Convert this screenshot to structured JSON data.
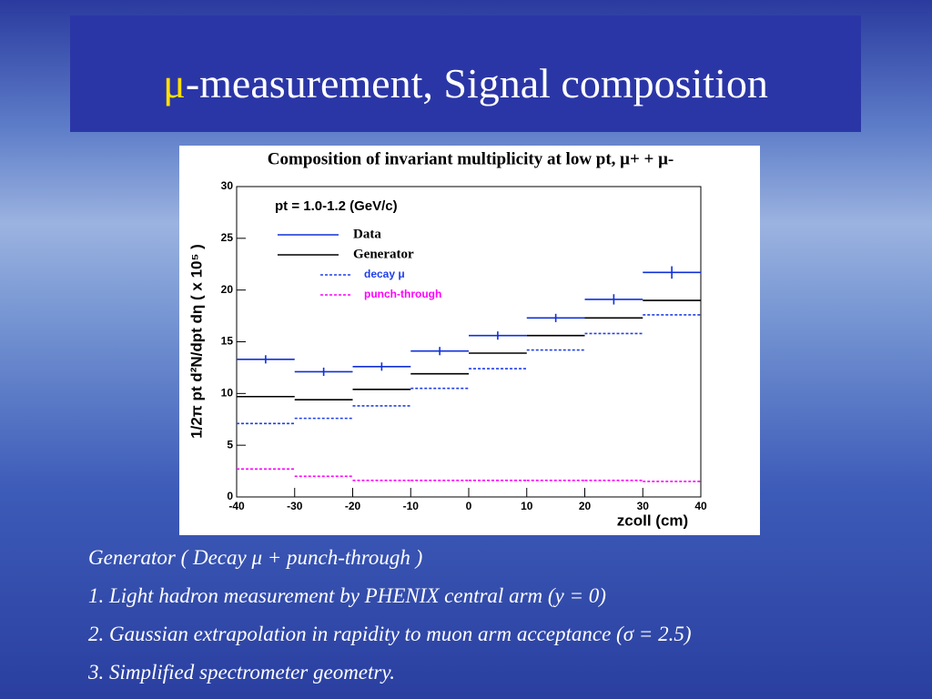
{
  "slide": {
    "title_symbol": "μ",
    "title": "-measurement, Signal composition",
    "notes": [
      "Generator  ( Decay μ + punch-through )",
      "1. Light hadron measurement  by PHENIX central arm (y = 0)",
      "2. Gaussian  extrapolation in rapidity to muon arm acceptance (σ = 2.5)",
      "3. Simplified spectrometer geometry."
    ]
  },
  "chart_data": {
    "type": "histogram",
    "title": "Composition of invariant multiplicity at low pt, μ+ + μ-",
    "annotation": "pt = 1.0-1.2 (GeV/c)",
    "x_label": "zcoll (cm)",
    "y_label": "1/2π pt d²N/dpt dη ( x 10⁵ )",
    "bins": [
      -40,
      -30,
      -20,
      -10,
      0,
      10,
      20,
      30,
      40
    ],
    "xlim": [
      -40,
      40
    ],
    "xticks": [
      -40,
      -30,
      -20,
      -10,
      0,
      10,
      20,
      30,
      40
    ],
    "ylim": [
      0,
      30
    ],
    "yticks": [
      0,
      5,
      10,
      15,
      20,
      25,
      30
    ],
    "series": [
      {
        "name": "Data",
        "color": "#1030d8",
        "style": "solid",
        "values": [
          13.3,
          12.1,
          12.6,
          14.1,
          15.6,
          17.3,
          19.1,
          21.7
        ],
        "errors": [
          0.4,
          0.4,
          0.4,
          0.4,
          0.4,
          0.4,
          0.5,
          0.6
        ]
      },
      {
        "name": "Generator",
        "color": "#000000",
        "style": "solid",
        "values": [
          9.7,
          9.4,
          10.4,
          11.9,
          13.9,
          15.6,
          17.3,
          19.0
        ]
      },
      {
        "name": "decay μ",
        "color": "#2040e8",
        "style": "dashed",
        "values": [
          7.1,
          7.6,
          8.8,
          10.5,
          12.4,
          14.2,
          15.8,
          17.6
        ]
      },
      {
        "name": "punch-through",
        "color": "#ff00ff",
        "style": "dashed",
        "values": [
          2.7,
          2.0,
          1.6,
          1.6,
          1.6,
          1.6,
          1.6,
          1.5
        ]
      }
    ]
  }
}
